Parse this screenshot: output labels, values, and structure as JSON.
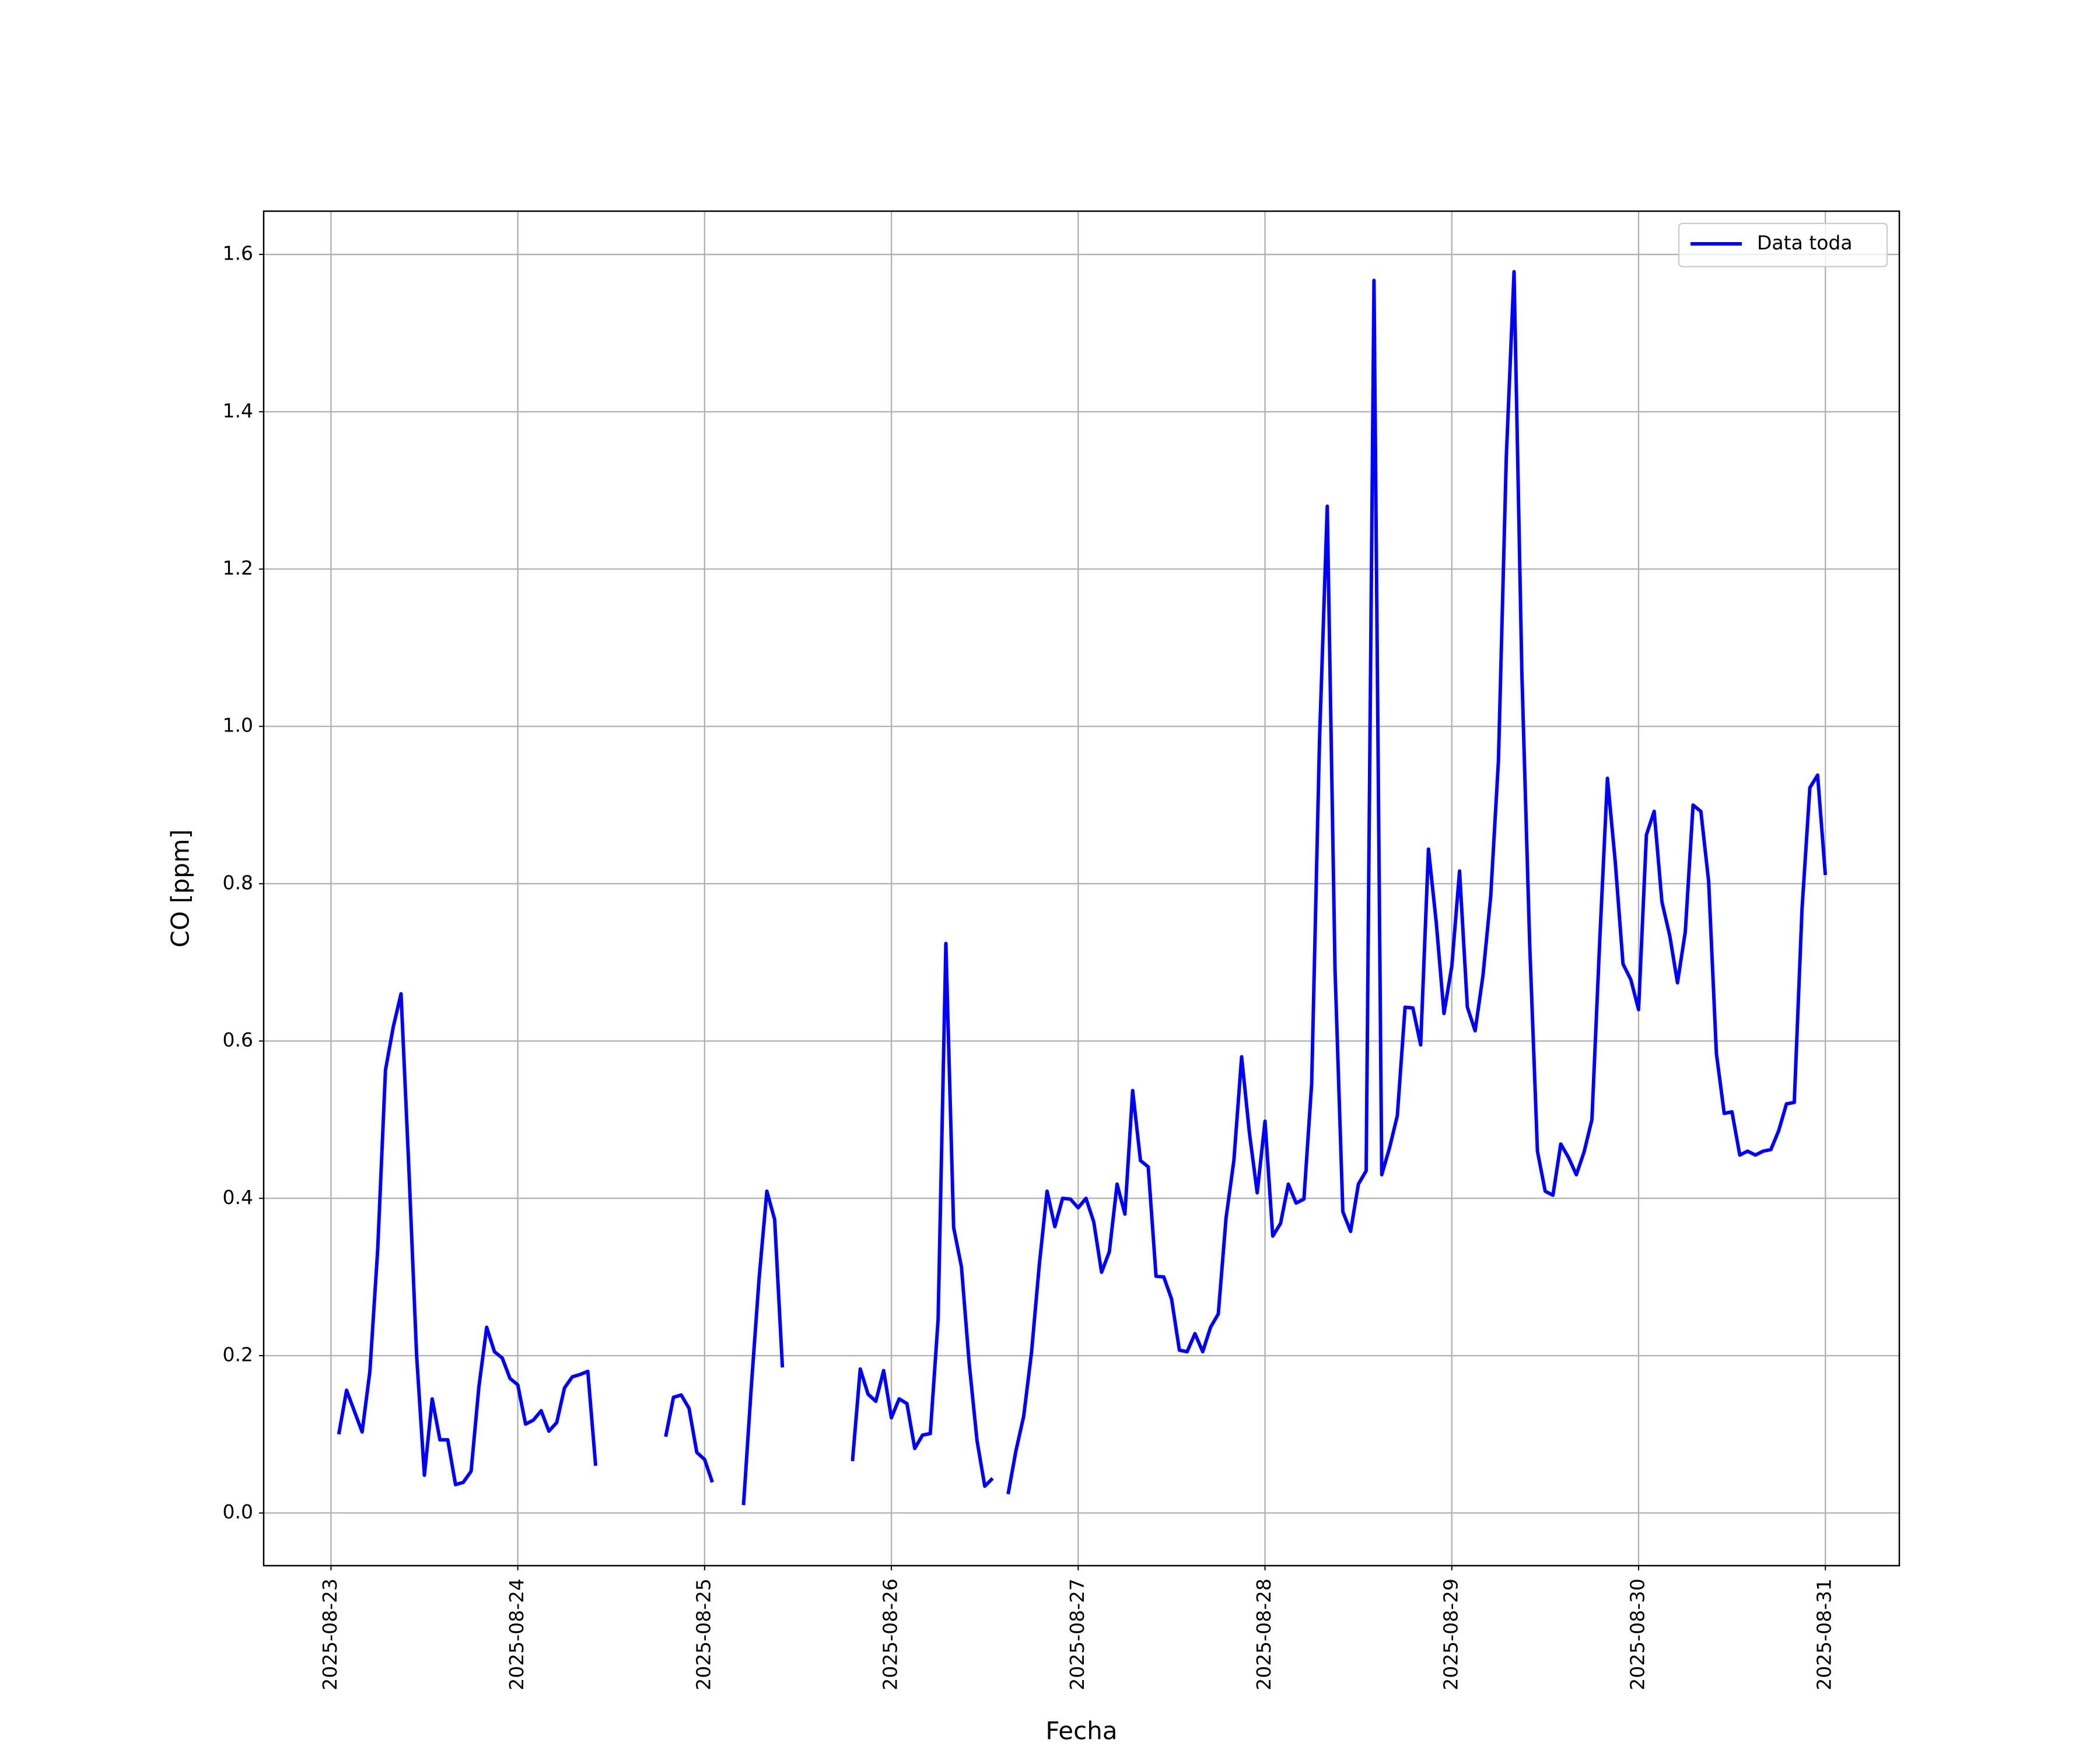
{
  "chart_data": {
    "type": "line",
    "x_label": "Fecha",
    "y_label": "CO [ppm]",
    "x": [
      "2025-08-23 01:00",
      "2025-08-23 02:00",
      "2025-08-23 04:00",
      "2025-08-23 05:00",
      "2025-08-23 06:00",
      "2025-08-23 07:00",
      "2025-08-23 08:00",
      "2025-08-23 09:00",
      "2025-08-23 10:00",
      "2025-08-23 11:00",
      "2025-08-23 12:00",
      "2025-08-23 13:00",
      "2025-08-23 14:00",
      "2025-08-23 15:00",
      "2025-08-23 16:00",
      "2025-08-23 17:00",
      "2025-08-23 18:00",
      "2025-08-23 19:00",
      "2025-08-23 20:00",
      "2025-08-23 21:00",
      "2025-08-23 22:00",
      "2025-08-23 23:00",
      "2025-08-24 00:00",
      "2025-08-24 01:00",
      "2025-08-24 02:00",
      "2025-08-24 03:00",
      "2025-08-24 04:00",
      "2025-08-24 05:00",
      "2025-08-24 06:00",
      "2025-08-24 07:00",
      "2025-08-24 08:00",
      "2025-08-24 09:00",
      "2025-08-24 10:00",
      "2025-08-24 11:00",
      "2025-08-24 19:00",
      "2025-08-24 20:00",
      "2025-08-24 21:00",
      "2025-08-24 22:00",
      "2025-08-24 23:00",
      "2025-08-25 00:00",
      "2025-08-25 01:00",
      "2025-08-25 03:00",
      "2025-08-25 05:00",
      "2025-08-25 06:00",
      "2025-08-25 07:00",
      "2025-08-25 08:00",
      "2025-08-25 09:00",
      "2025-08-25 10:00",
      "2025-08-25 15:00",
      "2025-08-25 19:00",
      "2025-08-25 20:00",
      "2025-08-25 21:00",
      "2025-08-25 22:00",
      "2025-08-25 23:00",
      "2025-08-26 00:00",
      "2025-08-26 01:00",
      "2025-08-26 02:00",
      "2025-08-26 03:00",
      "2025-08-26 04:00",
      "2025-08-26 05:00",
      "2025-08-26 06:00",
      "2025-08-26 07:00",
      "2025-08-26 08:00",
      "2025-08-26 09:00",
      "2025-08-26 10:00",
      "2025-08-26 11:00",
      "2025-08-26 12:00",
      "2025-08-26 13:00",
      "2025-08-26 14:00",
      "2025-08-26 15:00",
      "2025-08-26 16:00",
      "2025-08-26 17:00",
      "2025-08-26 18:00",
      "2025-08-26 19:00",
      "2025-08-26 20:00",
      "2025-08-26 21:00",
      "2025-08-26 22:00",
      "2025-08-26 23:00",
      "2025-08-27 00:00",
      "2025-08-27 01:00",
      "2025-08-27 02:00",
      "2025-08-27 03:00",
      "2025-08-27 04:00",
      "2025-08-27 05:00",
      "2025-08-27 06:00",
      "2025-08-27 07:00",
      "2025-08-27 08:00",
      "2025-08-27 09:00",
      "2025-08-27 10:00",
      "2025-08-27 11:00",
      "2025-08-27 12:00",
      "2025-08-27 13:00",
      "2025-08-27 14:00",
      "2025-08-27 15:00",
      "2025-08-27 16:00",
      "2025-08-27 17:00",
      "2025-08-27 18:00",
      "2025-08-27 19:00",
      "2025-08-27 20:00",
      "2025-08-27 21:00",
      "2025-08-27 22:00",
      "2025-08-27 23:00",
      "2025-08-28 00:00",
      "2025-08-28 01:00",
      "2025-08-28 02:00",
      "2025-08-28 03:00",
      "2025-08-28 04:00",
      "2025-08-28 05:00",
      "2025-08-28 06:00",
      "2025-08-28 07:00",
      "2025-08-28 08:00",
      "2025-08-28 09:00",
      "2025-08-28 10:00",
      "2025-08-28 11:00",
      "2025-08-28 12:00",
      "2025-08-28 13:00",
      "2025-08-28 14:00",
      "2025-08-28 15:00",
      "2025-08-28 16:00",
      "2025-08-28 17:00",
      "2025-08-28 18:00",
      "2025-08-28 19:00",
      "2025-08-28 20:00",
      "2025-08-28 21:00",
      "2025-08-28 22:00",
      "2025-08-28 23:00",
      "2025-08-29 00:00",
      "2025-08-29 01:00",
      "2025-08-29 02:00",
      "2025-08-29 03:00",
      "2025-08-29 04:00",
      "2025-08-29 05:00",
      "2025-08-29 06:00",
      "2025-08-29 07:00",
      "2025-08-29 08:00",
      "2025-08-29 09:00",
      "2025-08-29 10:00",
      "2025-08-29 11:00",
      "2025-08-29 12:00",
      "2025-08-29 13:00",
      "2025-08-29 14:00",
      "2025-08-29 15:00",
      "2025-08-29 16:00",
      "2025-08-29 17:00",
      "2025-08-29 18:00",
      "2025-08-29 19:00",
      "2025-08-29 20:00",
      "2025-08-29 21:00",
      "2025-08-29 22:00",
      "2025-08-29 23:00",
      "2025-08-30 00:00",
      "2025-08-30 01:00",
      "2025-08-30 02:00",
      "2025-08-30 03:00",
      "2025-08-30 04:00",
      "2025-08-30 05:00",
      "2025-08-30 06:00",
      "2025-08-30 07:00",
      "2025-08-30 08:00",
      "2025-08-30 09:00",
      "2025-08-30 10:00",
      "2025-08-30 11:00",
      "2025-08-30 12:00",
      "2025-08-30 13:00",
      "2025-08-30 14:00",
      "2025-08-30 15:00",
      "2025-08-30 16:00",
      "2025-08-30 17:00",
      "2025-08-30 18:00",
      "2025-08-30 19:00",
      "2025-08-30 20:00",
      "2025-08-30 21:00",
      "2025-08-30 22:00",
      "2025-08-30 23:00",
      "2025-08-31 00:00"
    ],
    "series": [
      {
        "name": "Data toda",
        "color": "#0000ff",
        "values": [
          0.1,
          0.156,
          0.103,
          0.18,
          0.335,
          0.563,
          0.618,
          0.66,
          0.44,
          0.2,
          0.048,
          0.145,
          0.093,
          0.093,
          0.036,
          0.039,
          0.053,
          0.16,
          0.236,
          0.205,
          0.197,
          0.171,
          0.163,
          0.113,
          0.118,
          0.13,
          0.104,
          0.115,
          0.159,
          0.173,
          0.176,
          0.18,
          0.06,
          null,
          0.097,
          0.147,
          0.15,
          0.133,
          0.077,
          0.068,
          0.039,
          null,
          0.01,
          0.16,
          0.298,
          0.409,
          0.373,
          0.185,
          null,
          0.066,
          0.183,
          0.151,
          0.142,
          0.181,
          0.121,
          0.145,
          0.139,
          0.082,
          0.099,
          0.101,
          0.246,
          0.724,
          0.363,
          0.313,
          0.19,
          0.092,
          0.034,
          0.044,
          null,
          0.024,
          0.079,
          0.123,
          0.204,
          0.315,
          0.409,
          0.364,
          0.4,
          0.399,
          0.388,
          0.4,
          0.37,
          0.306,
          0.332,
          0.418,
          0.38,
          0.537,
          0.448,
          0.44,
          0.301,
          0.3,
          0.272,
          0.207,
          0.205,
          0.228,
          0.205,
          0.236,
          0.253,
          0.375,
          0.448,
          0.58,
          0.483,
          0.407,
          0.498,
          0.352,
          0.368,
          0.418,
          0.394,
          0.399,
          0.546,
          0.982,
          1.28,
          0.691,
          0.383,
          0.358,
          0.418,
          0.435,
          1.567,
          0.43,
          0.464,
          0.505,
          0.643,
          0.642,
          0.595,
          0.844,
          0.751,
          0.635,
          0.695,
          0.816,
          0.643,
          0.613,
          0.683,
          0.784,
          0.957,
          1.342,
          1.578,
          1.068,
          0.726,
          0.46,
          0.409,
          0.404,
          0.469,
          0.452,
          0.43,
          0.459,
          0.5,
          0.726,
          0.934,
          0.828,
          0.698,
          0.678,
          0.64,
          0.862,
          0.892,
          0.777,
          0.734,
          0.674,
          0.739,
          0.9,
          0.892,
          0.803,
          0.584,
          0.508,
          0.51,
          0.455,
          0.46,
          0.455,
          0.46,
          0.462,
          0.486,
          0.52,
          0.522,
          0.768,
          0.922,
          0.938,
          0.811
        ]
      }
    ],
    "xlim": [
      "2025-08-22 15:21",
      "2025-08-31 09:30"
    ],
    "xticks": [
      "2025-08-23",
      "2025-08-24",
      "2025-08-25",
      "2025-08-26",
      "2025-08-27",
      "2025-08-28",
      "2025-08-29",
      "2025-08-30",
      "2025-08-31"
    ],
    "ylim": [
      -0.067,
      1.655
    ],
    "yticks": [
      {
        "value": 0,
        "label": "0.0"
      },
      0.2,
      0.4,
      0.6,
      0.8,
      {
        "value": 1,
        "label": "1.0"
      },
      1.2,
      1.4,
      1.6
    ],
    "grid": true,
    "legend": "upper right"
  }
}
